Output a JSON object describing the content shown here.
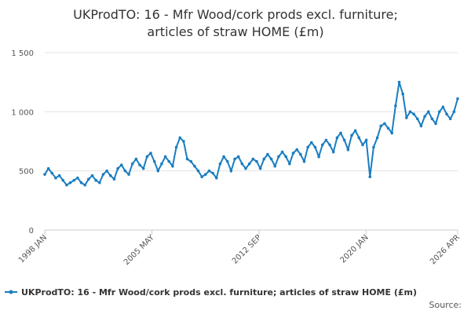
{
  "chart_data": {
    "type": "line",
    "title": [
      "UKProdTO: 16 - Mfr Wood/cork prods excl. furniture;",
      "articles of straw HOME (£m)"
    ],
    "source": "Source:",
    "x": [
      "1998 JAN",
      "1998 APR",
      "1998 JUL",
      "1998 OCT",
      "1999 JAN",
      "1999 APR",
      "1999 JUL",
      "1999 OCT",
      "2000 JAN",
      "2000 APR",
      "2000 JUL",
      "2000 OCT",
      "2001 JAN",
      "2001 APR",
      "2001 JUL",
      "2001 OCT",
      "2002 JAN",
      "2002 APR",
      "2002 JUL",
      "2002 OCT",
      "2003 JAN",
      "2003 APR",
      "2003 JUL",
      "2003 OCT",
      "2004 JAN",
      "2004 APR",
      "2004 JUL",
      "2004 OCT",
      "2005 JAN",
      "2005 APR",
      "2005 JUL",
      "2005 OCT",
      "2006 JAN",
      "2006 APR",
      "2006 JUL",
      "2006 OCT",
      "2007 JAN",
      "2007 APR",
      "2007 JUL",
      "2007 OCT",
      "2008 JAN",
      "2008 APR",
      "2008 JUL",
      "2008 OCT",
      "2009 JAN",
      "2009 APR",
      "2009 JUL",
      "2009 OCT",
      "2010 JAN",
      "2010 APR",
      "2010 JUL",
      "2010 OCT",
      "2011 JAN",
      "2011 APR",
      "2011 JUL",
      "2011 OCT",
      "2012 JAN",
      "2012 APR",
      "2012 JUL",
      "2012 OCT",
      "2013 JAN",
      "2013 APR",
      "2013 JUL",
      "2013 OCT",
      "2014 JAN",
      "2014 APR",
      "2014 JUL",
      "2014 OCT",
      "2015 JAN",
      "2015 APR",
      "2015 JUL",
      "2015 OCT",
      "2016 JAN",
      "2016 APR",
      "2016 JUL",
      "2016 OCT",
      "2017 JAN",
      "2017 APR",
      "2017 JUL",
      "2017 OCT",
      "2018 JAN",
      "2018 APR",
      "2018 JUL",
      "2018 OCT",
      "2019 JAN",
      "2019 APR",
      "2019 JUL",
      "2019 OCT",
      "2020 JAN",
      "2020 APR",
      "2020 JUL",
      "2020 OCT",
      "2021 JAN",
      "2021 APR",
      "2021 JUL",
      "2021 OCT",
      "2022 JAN",
      "2022 APR",
      "2022 JUL",
      "2022 OCT",
      "2023 JAN",
      "2023 APR",
      "2023 JUL",
      "2023 OCT",
      "2024 JAN",
      "2024 APR",
      "2024 JUL",
      "2024 OCT",
      "2025 JAN",
      "2025 APR",
      "2025 JUL",
      "2025 OCT",
      "2026 JAN",
      "2026 APR"
    ],
    "series": [
      {
        "name": "UKProdTO: 16 - Mfr Wood/cork prods excl. furniture; articles of straw HOME (£m)",
        "color": "#1a7dc0",
        "values": [
          470,
          520,
          480,
          440,
          460,
          420,
          380,
          400,
          420,
          440,
          400,
          380,
          430,
          460,
          420,
          400,
          470,
          500,
          460,
          430,
          520,
          550,
          500,
          470,
          560,
          600,
          550,
          520,
          620,
          650,
          580,
          500,
          560,
          620,
          580,
          540,
          700,
          780,
          750,
          600,
          580,
          540,
          500,
          450,
          470,
          500,
          480,
          440,
          560,
          620,
          580,
          500,
          600,
          620,
          560,
          520,
          560,
          600,
          580,
          520,
          600,
          640,
          600,
          540,
          620,
          660,
          620,
          560,
          650,
          680,
          640,
          580,
          700,
          740,
          700,
          620,
          720,
          760,
          720,
          660,
          780,
          820,
          760,
          680,
          800,
          840,
          780,
          720,
          760,
          450,
          700,
          780,
          880,
          900,
          860,
          820,
          1050,
          1250,
          1150,
          950,
          1000,
          980,
          940,
          880,
          960,
          1000,
          940,
          900,
          1000,
          1040,
          980,
          940,
          1000,
          1110
        ]
      }
    ],
    "xlim": [
      "1998 JAN",
      "2026 APR"
    ],
    "xticks": [
      "1998 JAN",
      "2005 MAY",
      "2012 SEP",
      "2020 JAN",
      "2026 APR"
    ],
    "ylim": [
      0,
      1500
    ],
    "yticks": [
      0,
      500,
      {
        "value": 1000,
        "label": "1 000"
      },
      {
        "value": 1500,
        "label": "1 500"
      }
    ],
    "grid": true
  }
}
